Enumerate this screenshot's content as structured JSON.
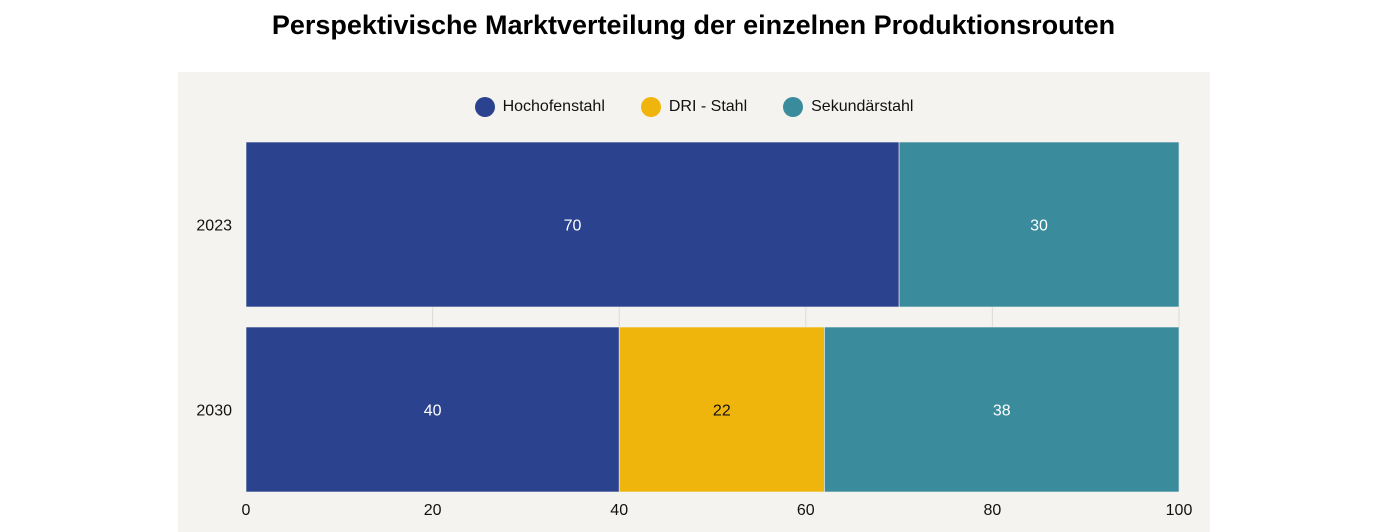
{
  "chart_data": {
    "type": "bar",
    "orientation": "horizontal",
    "stacked": true,
    "title": "Perspektivische Marktverteilung der einzelnen Produktionsrouten",
    "categories": [
      "2023",
      "2030"
    ],
    "series": [
      {
        "name": "Hochofenstahl",
        "color": "#2b438e",
        "label_color": "#ffffff",
        "values": [
          70,
          40
        ]
      },
      {
        "name": "DRI - Stahl",
        "color": "#f0b50c",
        "label_color": "#111111",
        "values": [
          0,
          22
        ]
      },
      {
        "name": "Sekundärstahl",
        "color": "#3a8b9c",
        "label_color": "#ffffff",
        "values": [
          30,
          38
        ]
      }
    ],
    "xlim": [
      0,
      100
    ],
    "xticks": [
      0,
      20,
      40,
      60,
      80,
      100
    ],
    "xlabel": "",
    "ylabel": "",
    "grid": true,
    "legend_position": "top-center",
    "panel_background": "#f4f3ef"
  }
}
